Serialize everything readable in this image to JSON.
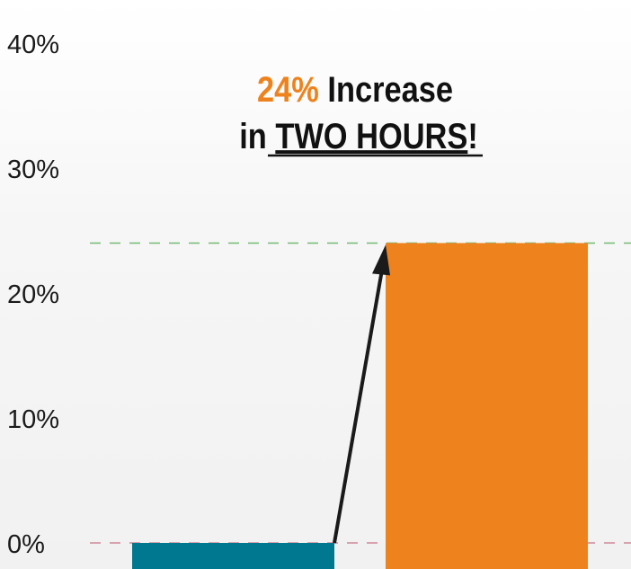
{
  "chart_data": {
    "type": "bar",
    "title": "",
    "xlabel": "",
    "ylabel": "",
    "ylim": [
      0,
      40
    ],
    "yticks": [
      0,
      10,
      20,
      30,
      40
    ],
    "ytick_labels": [
      "0%",
      "10%",
      "20%",
      "30%",
      "40%"
    ],
    "categories": [
      "",
      ""
    ],
    "values": [
      0,
      24
    ],
    "grid": false,
    "colors": [
      "#007990",
      "#ee821d"
    ],
    "reference_lines": [
      {
        "value": 0,
        "color": "#d0899a",
        "style": "dashed"
      },
      {
        "value": 24,
        "color": "#7cbf7c",
        "style": "dashed"
      }
    ],
    "annotation": {
      "highlight": "24%",
      "line1_rest": " Increase",
      "line2_prefix": "in ",
      "line2_underlined": "TWO HOURS",
      "line2_suffix": "!",
      "highlight_color": "#ee821d"
    },
    "arrow": {
      "from_value": 0,
      "to_value": 24,
      "color": "#1a1a1a"
    }
  }
}
